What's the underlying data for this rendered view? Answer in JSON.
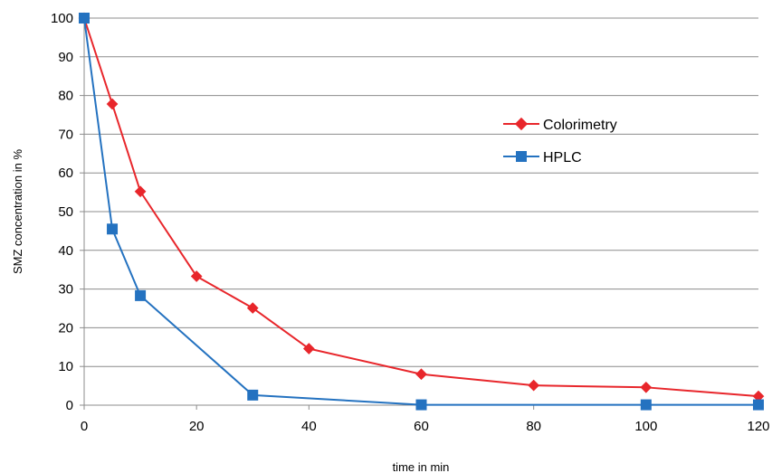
{
  "chart_data": {
    "type": "line",
    "title": "",
    "xlabel": "time in min",
    "ylabel": "SMZ concentration in %",
    "xlim": [
      0,
      120
    ],
    "ylim": [
      0,
      100
    ],
    "x_ticks": [
      0,
      20,
      40,
      60,
      80,
      100,
      120
    ],
    "y_ticks": [
      0,
      10,
      20,
      30,
      40,
      50,
      60,
      70,
      80,
      90,
      100
    ],
    "grid": "horizontal",
    "legend_position": "right-center",
    "series": [
      {
        "name": "Colorimetry",
        "color": "#e8262b",
        "marker": "diamond",
        "x": [
          0,
          5,
          10,
          20,
          30,
          40,
          60,
          80,
          100,
          120
        ],
        "y": [
          100,
          77.8,
          55.2,
          33.3,
          25.1,
          14.6,
          8.0,
          5.1,
          4.6,
          2.3
        ]
      },
      {
        "name": "HPLC",
        "color": "#2472c0",
        "marker": "square",
        "x": [
          0,
          5,
          10,
          30,
          60,
          100,
          120
        ],
        "y": [
          100,
          45.5,
          28.3,
          2.6,
          0.1,
          0.1,
          0.1
        ]
      }
    ]
  }
}
